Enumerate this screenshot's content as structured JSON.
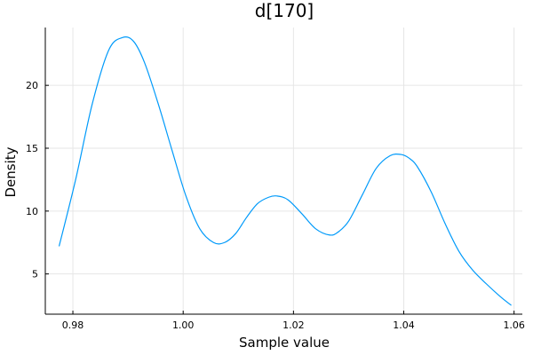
{
  "chart_data": {
    "type": "line",
    "title": "d[170]",
    "xlabel": "Sample value",
    "ylabel": "Density",
    "xlim": [
      0.975,
      1.0615
    ],
    "ylim": [
      1.8,
      24.6
    ],
    "xticks": [
      0.98,
      1.0,
      1.02,
      1.04,
      1.06
    ],
    "xtick_labels": [
      "0.98",
      "1.00",
      "1.02",
      "1.04",
      "1.06"
    ],
    "yticks": [
      5,
      10,
      15,
      20
    ],
    "ytick_labels": [
      "5",
      "10",
      "15",
      "20"
    ],
    "grid": true,
    "legend": "none",
    "series": [
      {
        "color": "#009AFA",
        "x": [
          0.9775,
          0.9805,
          0.9835,
          0.9865,
          0.989,
          0.991,
          0.993,
          0.9955,
          0.998,
          1.0005,
          1.003,
          1.0055,
          1.0075,
          1.0095,
          1.0115,
          1.0135,
          1.0155,
          1.017,
          1.019,
          1.0215,
          1.024,
          1.0265,
          1.028,
          1.03,
          1.0325,
          1.035,
          1.0375,
          1.0395,
          1.041,
          1.0425,
          1.045,
          1.0475,
          1.05,
          1.0525,
          1.055,
          1.0575,
          1.0595
        ],
        "y": [
          7.2,
          12.5,
          18.5,
          22.8,
          23.8,
          23.5,
          21.8,
          18.5,
          14.8,
          11.2,
          8.6,
          7.5,
          7.5,
          8.2,
          9.5,
          10.6,
          11.1,
          11.2,
          10.9,
          9.8,
          8.6,
          8.1,
          8.3,
          9.2,
          11.3,
          13.4,
          14.4,
          14.5,
          14.2,
          13.5,
          11.5,
          9.0,
          6.8,
          5.3,
          4.2,
          3.2,
          2.5
        ]
      }
    ]
  }
}
